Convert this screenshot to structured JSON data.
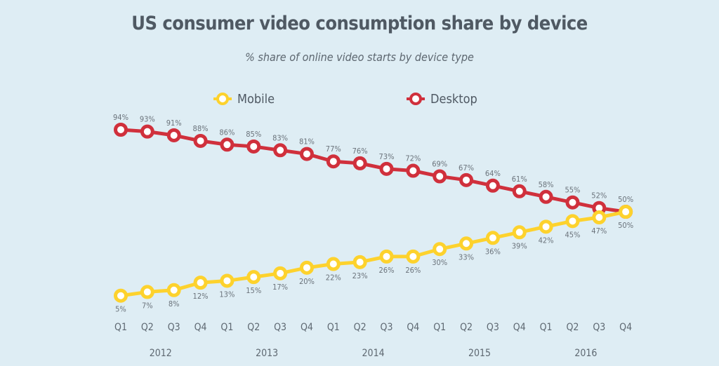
{
  "chart_data": {
    "type": "line",
    "title": "US consumer video consumption share by device",
    "subtitle": "% share of online video starts by device type",
    "quarters": [
      "Q1",
      "Q2",
      "Q3",
      "Q4",
      "Q1",
      "Q2",
      "Q3",
      "Q4",
      "Q1",
      "Q2",
      "Q3",
      "Q4",
      "Q1",
      "Q2",
      "Q3",
      "Q4",
      "Q1",
      "Q2",
      "Q3",
      "Q4"
    ],
    "years": [
      "2012",
      "2013",
      "2014",
      "2015",
      "2016"
    ],
    "series": [
      {
        "name": "Mobile",
        "color": "#fdd22d",
        "values": [
          5,
          7,
          8,
          12,
          13,
          15,
          17,
          20,
          22,
          23,
          26,
          26,
          30,
          33,
          36,
          39,
          42,
          45,
          47,
          50
        ]
      },
      {
        "name": "Desktop",
        "color": "#d0303c",
        "values": [
          94,
          93,
          91,
          88,
          86,
          85,
          83,
          81,
          77,
          76,
          73,
          72,
          69,
          67,
          64,
          61,
          58,
          55,
          52,
          50
        ]
      }
    ],
    "value_suffix": "%",
    "legend": "top",
    "grid": false
  }
}
